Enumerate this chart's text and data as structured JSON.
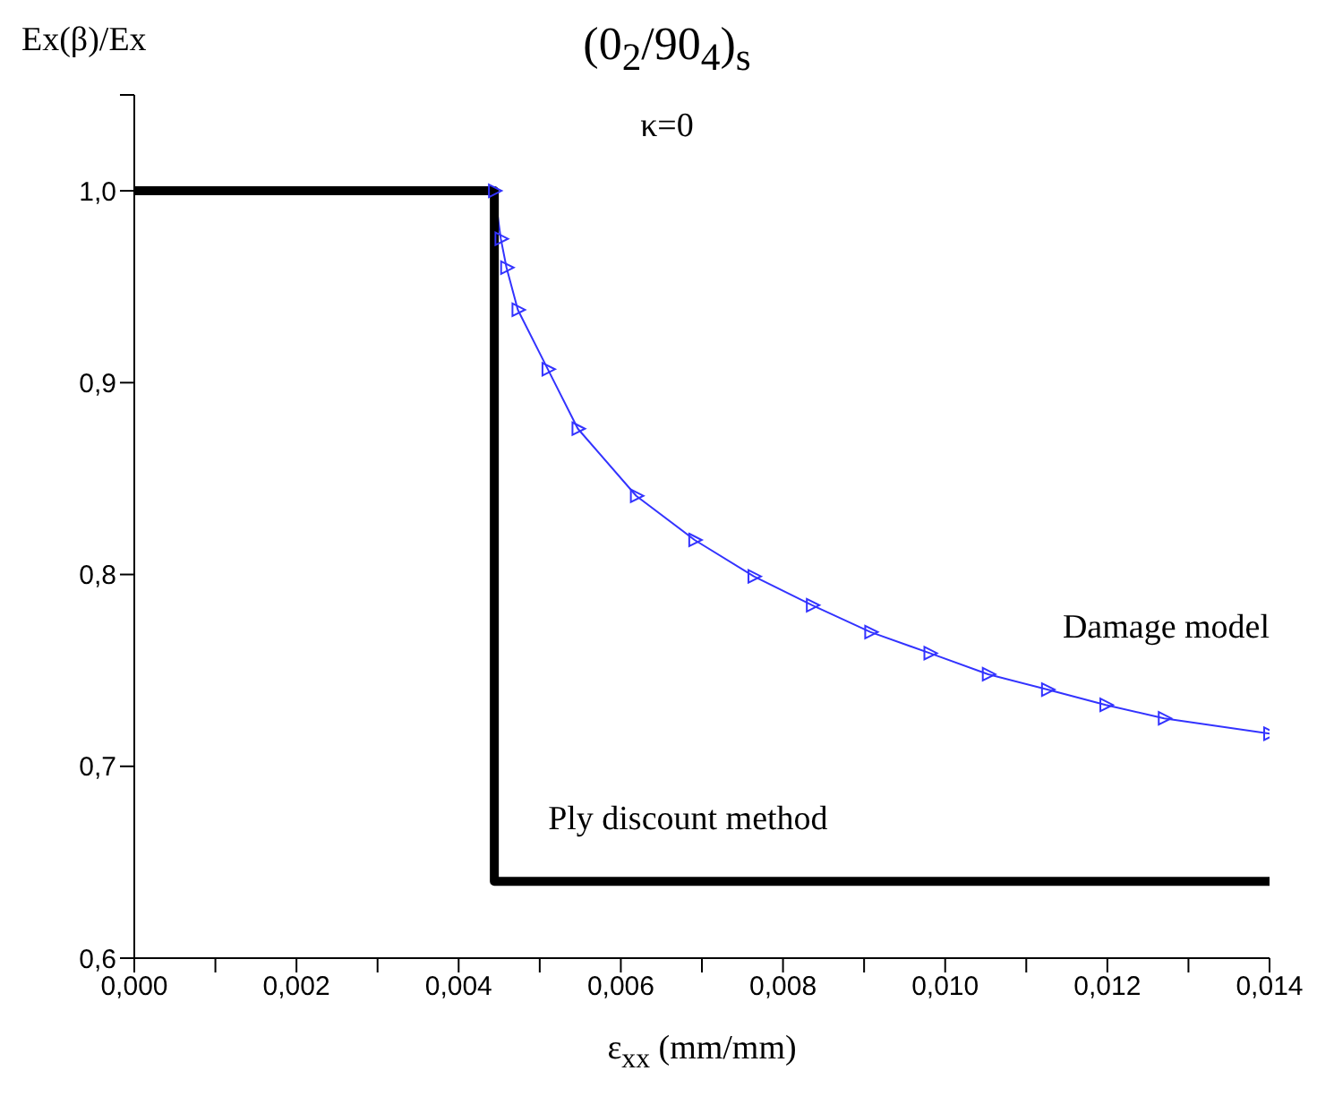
{
  "chart_data": {
    "type": "line",
    "title": "(0$_{2}$/90$_{4}$)$_{s}$",
    "subtitle": "κ=0",
    "xlabel": "ε$_{xx}$ (mm/mm)",
    "ylabel": "Ex(β)/Ex",
    "xlim": [
      0,
      0.014
    ],
    "ylim": [
      0.6,
      1.05
    ],
    "xticks": [
      {
        "value": 0,
        "label": "0,000"
      },
      {
        "value": 0.001,
        "label": null
      },
      {
        "value": 0.002,
        "label": "0,002"
      },
      {
        "value": 0.003,
        "label": null
      },
      {
        "value": 0.004,
        "label": "0,004"
      },
      {
        "value": 0.005,
        "label": null
      },
      {
        "value": 0.006,
        "label": "0,006"
      },
      {
        "value": 0.007,
        "label": null
      },
      {
        "value": 0.008,
        "label": "0,008"
      },
      {
        "value": 0.009,
        "label": null
      },
      {
        "value": 0.01,
        "label": "0,010"
      },
      {
        "value": 0.011,
        "label": null
      },
      {
        "value": 0.012,
        "label": "0,012"
      },
      {
        "value": 0.013,
        "label": null
      },
      {
        "value": 0.014,
        "label": "0,014"
      }
    ],
    "yticks": [
      {
        "value": 0.6,
        "label": "0,6"
      },
      {
        "value": 0.7,
        "label": "0,7"
      },
      {
        "value": 0.8,
        "label": "0,8"
      },
      {
        "value": 0.9,
        "label": "0,9"
      },
      {
        "value": 1.0,
        "label": "1,0"
      },
      {
        "value": 1.05,
        "label": null
      }
    ],
    "legend": false,
    "series": [
      {
        "name": "Damage model",
        "color": "#3333ff",
        "marker": "triangle",
        "x": [
          0.00444,
          0.00452,
          0.00459,
          0.00473,
          0.0051,
          0.00547,
          0.00619,
          0.00691,
          0.00764,
          0.00836,
          0.00908,
          0.00981,
          0.01053,
          0.01126,
          0.01198,
          0.0127,
          0.014
        ],
        "values": [
          1.0,
          0.975,
          0.96,
          0.938,
          0.907,
          0.876,
          0.841,
          0.818,
          0.799,
          0.784,
          0.77,
          0.759,
          0.748,
          0.74,
          0.732,
          0.725,
          0.717
        ]
      },
      {
        "name": "Ply discount method",
        "color": "#000000",
        "marker": "none",
        "x": [
          0,
          0.00444,
          0.00444,
          0.014
        ],
        "values": [
          1.0,
          1.0,
          0.64,
          0.64
        ]
      }
    ]
  }
}
